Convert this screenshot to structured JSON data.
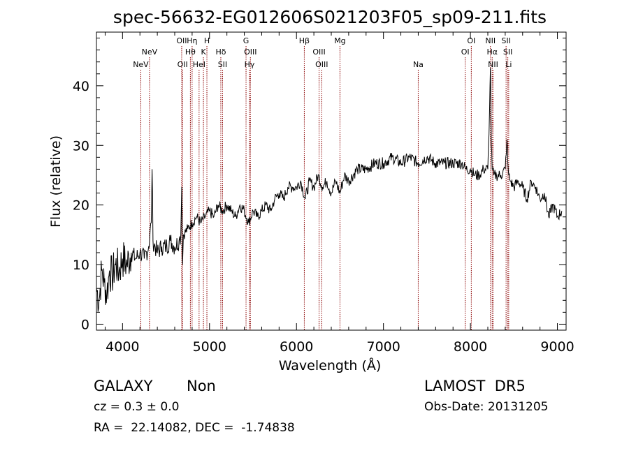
{
  "chart_data": {
    "type": "line",
    "title": "spec-56632-EG012606S021203F05_sp09-211.fits",
    "xlabel": "Wavelength (Å)",
    "ylabel": "Flux (relative)",
    "xlim": [
      3700,
      9100
    ],
    "ylim": [
      -1,
      49
    ],
    "xticks": [
      4000,
      5000,
      6000,
      7000,
      8000,
      9000
    ],
    "xtick_labels": [
      "4000",
      "5000",
      "6000",
      "7000",
      "8000",
      "9000"
    ],
    "yticks": [
      0,
      10,
      20,
      30,
      40
    ],
    "ytick_labels": [
      "0",
      "10",
      "20",
      "30",
      "40"
    ],
    "grid": false,
    "line_color": "#000000",
    "marker_color": "#8b0000",
    "series": [
      {
        "x": [
          3700,
          3730,
          3760,
          3790,
          3820,
          3850,
          3880,
          3920,
          3960,
          4000,
          4050,
          4100,
          4150,
          4200,
          4250,
          4300,
          4330,
          4340,
          4350,
          4400,
          4450,
          4500,
          4550,
          4600,
          4650,
          4670,
          4680,
          4690,
          4700,
          4750,
          4800,
          4850,
          4900,
          4950,
          5000,
          5050,
          5100,
          5150,
          5200,
          5250,
          5300,
          5350,
          5400,
          5450,
          5500,
          5550,
          5600,
          5650,
          5700,
          5750,
          5800,
          5850,
          5900,
          5950,
          6000,
          6050,
          6100,
          6150,
          6200,
          6250,
          6300,
          6350,
          6400,
          6450,
          6500,
          6550,
          6600,
          6700,
          6800,
          6900,
          7000,
          7100,
          7200,
          7300,
          7400,
          7500,
          7600,
          7700,
          7800,
          7900,
          7950,
          8000,
          8050,
          8100,
          8150,
          8200,
          8220,
          8230,
          8240,
          8250,
          8270,
          8300,
          8350,
          8400,
          8420,
          8430,
          8440,
          8460,
          8500,
          8550,
          8600,
          8650,
          8700,
          8750,
          8800,
          8850,
          8900,
          8950,
          9000,
          9050
        ],
        "y": [
          6,
          4,
          9,
          7,
          5,
          9,
          8,
          10,
          9,
          11,
          10,
          12,
          11,
          12,
          11,
          13,
          17,
          26,
          14,
          12,
          13,
          13,
          14,
          13,
          14,
          15,
          23,
          10,
          15,
          16,
          17,
          18,
          17,
          18,
          19,
          18,
          20,
          19,
          20,
          19,
          18,
          20,
          19,
          17,
          19,
          18,
          19,
          20,
          19,
          21,
          22,
          21,
          23,
          23,
          23,
          24,
          21,
          24,
          23,
          25,
          23,
          24,
          22,
          24,
          22,
          25,
          24,
          26,
          26,
          27,
          27,
          28,
          27,
          28,
          27,
          28,
          27,
          27,
          27,
          27,
          26,
          26,
          25,
          25,
          26,
          26,
          36,
          43,
          30,
          26,
          25,
          25,
          25,
          26,
          31,
          27,
          25,
          24,
          23,
          24,
          23,
          21,
          24,
          23,
          21,
          22,
          18,
          20,
          18,
          19
        ]
      }
    ],
    "lines": [
      {
        "x": 4210,
        "label": "NeV",
        "row": 3
      },
      {
        "x": 4310,
        "label": "NeV",
        "row": 2
      },
      {
        "x": 4680,
        "label": "OII",
        "row": 1
      },
      {
        "x": 4690,
        "label": "OII",
        "row": 3
      },
      {
        "x": 4780,
        "label": "Hθ",
        "row": 2
      },
      {
        "x": 4800,
        "label": "Hη",
        "row": 1
      },
      {
        "x": 4880,
        "label": "HeI",
        "row": 3
      },
      {
        "x": 4930,
        "label": "K",
        "row": 2
      },
      {
        "x": 4970,
        "label": "H",
        "row": 1
      },
      {
        "x": 5130,
        "label": "Hδ",
        "row": 2
      },
      {
        "x": 5150,
        "label": "SII",
        "row": 3
      },
      {
        "x": 5420,
        "label": "G",
        "row": 1
      },
      {
        "x": 5470,
        "label": "OIII",
        "row": 2
      },
      {
        "x": 5460,
        "label": "Hγ",
        "row": 3
      },
      {
        "x": 6090,
        "label": "Hβ",
        "row": 1
      },
      {
        "x": 6260,
        "label": "OIII",
        "row": 2
      },
      {
        "x": 6290,
        "label": "OIII",
        "row": 3
      },
      {
        "x": 6500,
        "label": "Mg",
        "row": 1
      },
      {
        "x": 7400,
        "label": "Na",
        "row": 3
      },
      {
        "x": 7940,
        "label": "OI",
        "row": 2
      },
      {
        "x": 8010,
        "label": "OI",
        "row": 1
      },
      {
        "x": 8230,
        "label": "NII",
        "row": 1
      },
      {
        "x": 8250,
        "label": "Hα",
        "row": 2
      },
      {
        "x": 8260,
        "label": "NII",
        "row": 3
      },
      {
        "x": 8410,
        "label": "SII",
        "row": 1
      },
      {
        "x": 8430,
        "label": "SII",
        "row": 2
      },
      {
        "x": 8440,
        "label": "Li",
        "row": 3
      }
    ]
  },
  "info": {
    "class_label": "GALAXY",
    "subclass": "Non",
    "cz_text": "cz = 0.3 ± 0.0",
    "coords": "RA =  22.14082, DEC =  -1.74838",
    "survey": "LAMOST  DR5",
    "obs_date": "Obs-Date: 20131205"
  }
}
